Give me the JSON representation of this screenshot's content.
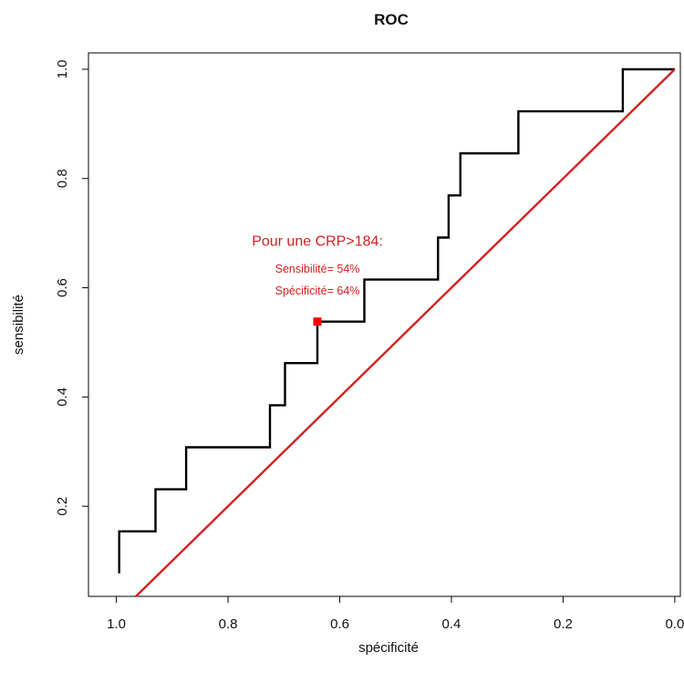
{
  "chart_data": {
    "type": "line",
    "title": "ROC",
    "xlabel": "spécificité",
    "ylabel": "sensibilité",
    "xlim": [
      1.05,
      -0.01
    ],
    "ylim": [
      0.035,
      1.03
    ],
    "x_reversed": true,
    "grid": false,
    "x_ticks": [
      {
        "value": 1.0,
        "label": "1.0"
      },
      {
        "value": 0.8,
        "label": "0.8"
      },
      {
        "value": 0.6,
        "label": "0.6"
      },
      {
        "value": 0.4,
        "label": "0.4"
      },
      {
        "value": 0.2,
        "label": "0.2"
      },
      {
        "value": 0.0,
        "label": "0.0"
      }
    ],
    "y_ticks": [
      {
        "value": 0.2,
        "label": "0.2"
      },
      {
        "value": 0.4,
        "label": "0.4"
      },
      {
        "value": 0.6,
        "label": "0.6"
      },
      {
        "value": 0.8,
        "label": "0.8"
      },
      {
        "value": 1.0,
        "label": "1.0"
      }
    ],
    "series": [
      {
        "color": "#000000",
        "step": true,
        "points": [
          [
            0.995,
            0.077
          ],
          [
            0.995,
            0.154
          ],
          [
            0.93,
            0.154
          ],
          [
            0.93,
            0.231
          ],
          [
            0.875,
            0.231
          ],
          [
            0.875,
            0.308
          ],
          [
            0.725,
            0.308
          ],
          [
            0.725,
            0.385
          ],
          [
            0.698,
            0.385
          ],
          [
            0.698,
            0.462
          ],
          [
            0.64,
            0.462
          ],
          [
            0.64,
            0.538
          ],
          [
            0.556,
            0.538
          ],
          [
            0.556,
            0.615
          ],
          [
            0.424,
            0.615
          ],
          [
            0.424,
            0.692
          ],
          [
            0.405,
            0.692
          ],
          [
            0.405,
            0.769
          ],
          [
            0.384,
            0.769
          ],
          [
            0.384,
            0.846
          ],
          [
            0.28,
            0.846
          ],
          [
            0.28,
            0.923
          ],
          [
            0.093,
            0.923
          ],
          [
            0.093,
            1.0
          ],
          [
            0.0,
            1.0
          ]
        ]
      },
      {
        "color": "#d42020",
        "points": [
          [
            0.965,
            0.035
          ],
          [
            0.0,
            1.0
          ]
        ]
      }
    ],
    "highlight_point": {
      "x": 0.64,
      "y": 0.538,
      "color": "#ff0000"
    },
    "annotations": [
      {
        "text": "Pour une CRP>184:",
        "x": 0.64,
        "y": 0.677,
        "color": "#d42020",
        "size": "large"
      },
      {
        "text": "Sensibilité= 54%",
        "x": 0.64,
        "y": 0.628,
        "color": "#d42020",
        "size": "small"
      },
      {
        "text": "Spécificité= 64%",
        "x": 0.64,
        "y": 0.588,
        "color": "#d42020",
        "size": "small"
      }
    ]
  }
}
